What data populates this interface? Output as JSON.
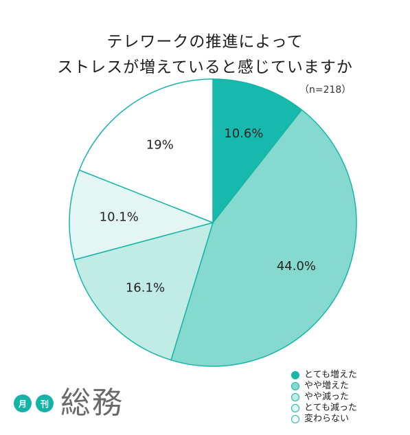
{
  "chart_data": {
    "type": "pie",
    "title_lines": [
      "テレワークの推進によって",
      "ストレスが増えていると感じていますか"
    ],
    "note": "（n=218）",
    "slices": [
      {
        "label": "とても増えた",
        "value": 10.6,
        "value_label": "10.6%",
        "color": "#16b9ab"
      },
      {
        "label": "やや増えた",
        "value": 44.0,
        "value_label": "44.0%",
        "color": "#86d9cf"
      },
      {
        "label": "やや減った",
        "value": 16.1,
        "value_label": "16.1%",
        "color": "#c1ebe5"
      },
      {
        "label": "とても減った",
        "value": 10.1,
        "value_label": "10.1%",
        "color": "#e4f6f3"
      },
      {
        "label": "変わらない",
        "value": 19.0,
        "value_label": "19%",
        "color": "#ffffff"
      }
    ],
    "start": "top",
    "direction": "clockwise",
    "legend_position": "bottom-right"
  },
  "logo": {
    "badge1": "月",
    "badge2": "刊",
    "name": "総務"
  }
}
